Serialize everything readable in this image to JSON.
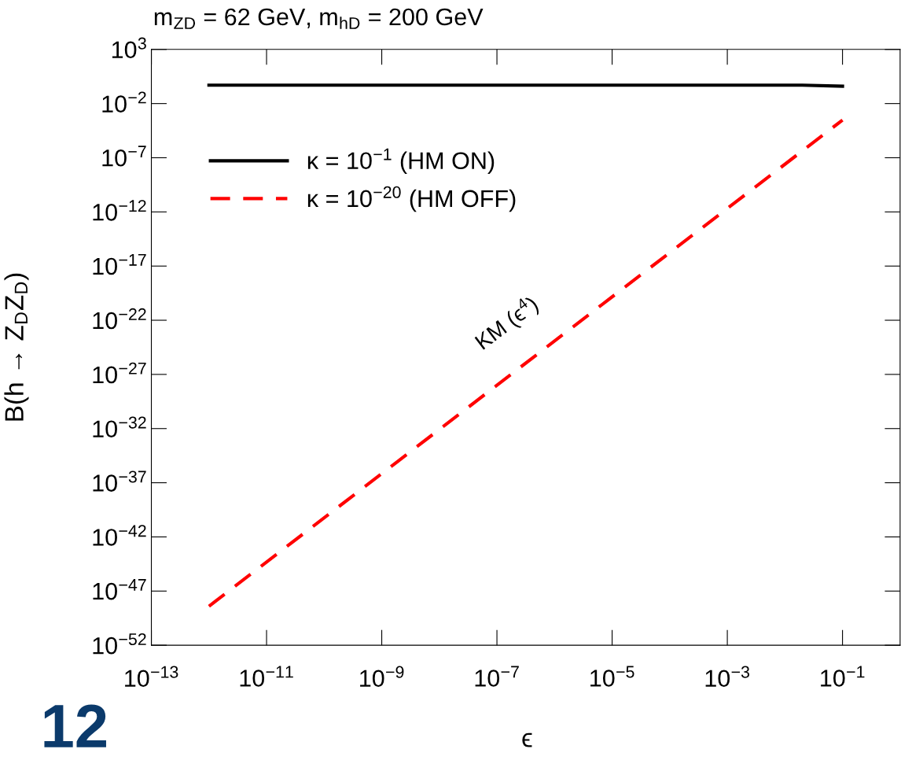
{
  "chart_data": {
    "type": "line",
    "title": "m$_{ZD}$ = 62 GeV, m$_{hD}$ = 200 GeV",
    "xlabel": "ϵ",
    "ylabel": "B(h → Z$_{D}$Z$_{D}$)",
    "log": "xy",
    "grid": false,
    "legend": "top left",
    "marker": "none",
    "xlim": [
      1e-13,
      1
    ],
    "xticks": [
      {
        "value": 1e-13,
        "label": "10$^{−13}$"
      },
      {
        "value": 1e-11,
        "label": "10$^{−11}$"
      },
      {
        "value": 1e-09,
        "label": "10$^{−9}$"
      },
      {
        "value": 1e-07,
        "label": "10$^{−7}$"
      },
      {
        "value": 1e-05,
        "label": "10$^{−5}$"
      },
      {
        "value": 0.001,
        "label": "10$^{−3}$"
      },
      {
        "value": 0.1,
        "label": "10$^{−1}$"
      }
    ],
    "ylim": [
      1e-52,
      1000.0
    ],
    "yticks": [
      {
        "value": 1000.0,
        "label": "10$^{3}$"
      },
      {
        "value": 0.01,
        "label": "10$^{−2}$"
      },
      {
        "value": 1e-07,
        "label": "10$^{−7}$"
      },
      {
        "value": 1e-12,
        "label": "10$^{−12}$"
      },
      {
        "value": 1e-17,
        "label": "10$^{−17}$"
      },
      {
        "value": 1e-22,
        "label": "10$^{−22}$"
      },
      {
        "value": 1e-27,
        "label": "10$^{−27}$"
      },
      {
        "value": 1e-32,
        "label": "10$^{−32}$"
      },
      {
        "value": 1e-37,
        "label": "10$^{−37}$"
      },
      {
        "value": 1e-42,
        "label": "10$^{−42}$"
      },
      {
        "value": 1e-47,
        "label": "10$^{−47}$"
      },
      {
        "value": 1e-52,
        "label": "10$^{−52}$"
      }
    ],
    "series": [
      {
        "name": "κ = 10$^{−1}$ (HM ON)",
        "color": "#000000",
        "line_style": "solid",
        "x": [
          1e-12,
          0.02,
          0.1
        ],
        "values": [
          0.5,
          0.5,
          0.4
        ]
      },
      {
        "name": "κ = 10$^{−20}$ (HM OFF)",
        "color": "#ff0000",
        "line_style": "dashed",
        "x": [
          1e-12,
          0.1
        ],
        "values": [
          4e-49,
          0.0003
        ]
      }
    ],
    "annotations": [
      "KM (ϵ$^{4}$)",
      "12"
    ]
  }
}
